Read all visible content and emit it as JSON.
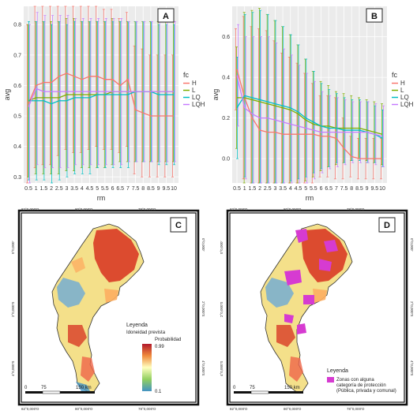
{
  "colors": {
    "H": "#f8766d",
    "L": "#7cae00",
    "LQ": "#00bfc4",
    "LQH": "#c77cff",
    "protected": "#d63bd1"
  },
  "chart_data": [
    {
      "type": "line",
      "panel": "A",
      "xlabel": "rm",
      "ylabel": "avg",
      "ylim": [
        0.28,
        0.86
      ],
      "yticks": [
        "0.3",
        "0.4",
        "0.5",
        "0.6",
        "0.7",
        "0.8"
      ],
      "categories": [
        "0.5",
        "1",
        "1.5",
        "2",
        "2.5",
        "3",
        "3.5",
        "4",
        "4.5",
        "5",
        "5.5",
        "6",
        "6.5",
        "7",
        "7.5",
        "8",
        "8.5",
        "9",
        "9.5",
        "10"
      ],
      "legend_title": "fc",
      "legend": [
        "H",
        "L",
        "LQ",
        "LQH"
      ],
      "legend_position": "right",
      "grid": true,
      "series": [
        {
          "name": "H",
          "values": [
            0.54,
            0.6,
            0.61,
            0.61,
            0.63,
            0.64,
            0.63,
            0.62,
            0.63,
            0.63,
            0.62,
            0.62,
            0.6,
            0.62,
            0.52,
            0.51,
            0.5,
            0.5,
            0.5,
            0.5
          ],
          "errors": [
            0.26,
            0.27,
            0.27,
            0.27,
            0.26,
            0.25,
            0.25,
            0.24,
            0.24,
            0.23,
            0.23,
            0.23,
            0.22,
            0.22,
            0.21,
            0.21,
            0.2,
            0.2,
            0.2,
            0.2
          ]
        },
        {
          "name": "L",
          "values": [
            0.55,
            0.56,
            0.56,
            0.56,
            0.56,
            0.57,
            0.57,
            0.57,
            0.57,
            0.57,
            0.57,
            0.58,
            0.58,
            0.58,
            0.58,
            0.58,
            0.58,
            0.58,
            0.58,
            0.58
          ],
          "errors": [
            0.25,
            0.25,
            0.25,
            0.25,
            0.25,
            0.25,
            0.25,
            0.24,
            0.24,
            0.24,
            0.24,
            0.24,
            0.23,
            0.23,
            0.23,
            0.23,
            0.23,
            0.23,
            0.23,
            0.23
          ]
        },
        {
          "name": "LQ",
          "values": [
            0.55,
            0.55,
            0.55,
            0.54,
            0.55,
            0.55,
            0.56,
            0.56,
            0.56,
            0.57,
            0.57,
            0.57,
            0.57,
            0.57,
            0.58,
            0.58,
            0.58,
            0.57,
            0.57,
            0.57
          ],
          "errors": [
            0.26,
            0.26,
            0.26,
            0.26,
            0.26,
            0.25,
            0.25,
            0.25,
            0.25,
            0.24,
            0.24,
            0.24,
            0.24,
            0.24,
            0.23,
            0.23,
            0.23,
            0.23,
            0.23,
            0.23
          ]
        },
        {
          "name": "LQH",
          "values": [
            0.53,
            0.59,
            0.58,
            0.58,
            0.58,
            0.58,
            0.58,
            0.58,
            0.58,
            0.58,
            0.58,
            0.58,
            0.58,
            0.58,
            0.58,
            0.58,
            0.58,
            0.58,
            0.58,
            0.58
          ],
          "errors": [
            0.27,
            0.25,
            0.25,
            0.25,
            0.25,
            0.25,
            0.24,
            0.24,
            0.24,
            0.24,
            0.24,
            0.24,
            0.24,
            0.23,
            0.23,
            0.23,
            0.23,
            0.23,
            0.23,
            0.23
          ]
        }
      ]
    },
    {
      "type": "line",
      "panel": "B",
      "xlabel": "rm",
      "ylabel": "avg",
      "ylim": [
        -0.12,
        0.75
      ],
      "yticks": [
        "0.0",
        "0.2",
        "0.4",
        "0.6"
      ],
      "categories": [
        "0.5",
        "1",
        "1.5",
        "2",
        "2.5",
        "3",
        "3.5",
        "4",
        "4.5",
        "5",
        "5.5",
        "6",
        "6.5",
        "7",
        "7.5",
        "8",
        "8.5",
        "9",
        "9.5",
        "10"
      ],
      "legend_title": "fc",
      "legend": [
        "H",
        "L",
        "LQ",
        "LQH"
      ],
      "legend_position": "right",
      "grid": true,
      "series": [
        {
          "name": "H",
          "values": [
            0.44,
            0.3,
            0.2,
            0.14,
            0.13,
            0.13,
            0.12,
            0.12,
            0.12,
            0.12,
            0.12,
            0.11,
            0.11,
            0.1,
            0.05,
            0.01,
            0.0,
            0.0,
            0.0,
            0.0
          ],
          "errors": [
            0.2,
            0.4,
            0.45,
            0.5,
            0.5,
            0.45,
            0.4,
            0.38,
            0.35,
            0.3,
            0.25,
            0.2,
            0.2,
            0.2,
            0.15,
            0.1,
            0.1,
            0.1,
            0.1,
            0.1
          ]
        },
        {
          "name": "L",
          "values": [
            0.3,
            0.3,
            0.29,
            0.28,
            0.27,
            0.26,
            0.25,
            0.24,
            0.22,
            0.19,
            0.17,
            0.16,
            0.16,
            0.15,
            0.15,
            0.15,
            0.15,
            0.14,
            0.13,
            0.12
          ],
          "errors": [
            0.25,
            0.42,
            0.44,
            0.46,
            0.44,
            0.42,
            0.4,
            0.37,
            0.34,
            0.3,
            0.26,
            0.22,
            0.2,
            0.18,
            0.17,
            0.16,
            0.15,
            0.15,
            0.15,
            0.15
          ]
        },
        {
          "name": "LQ",
          "values": [
            0.25,
            0.31,
            0.3,
            0.29,
            0.28,
            0.27,
            0.26,
            0.25,
            0.23,
            0.2,
            0.18,
            0.16,
            0.15,
            0.15,
            0.14,
            0.14,
            0.14,
            0.13,
            0.12,
            0.1
          ],
          "errors": [
            0.25,
            0.4,
            0.42,
            0.44,
            0.43,
            0.41,
            0.39,
            0.36,
            0.33,
            0.29,
            0.25,
            0.21,
            0.19,
            0.17,
            0.16,
            0.15,
            0.15,
            0.15,
            0.14,
            0.14
          ]
        },
        {
          "name": "LQH",
          "values": [
            0.41,
            0.25,
            0.22,
            0.2,
            0.2,
            0.19,
            0.18,
            0.17,
            0.16,
            0.15,
            0.14,
            0.13,
            0.13,
            0.13,
            0.13,
            0.13,
            0.13,
            0.13,
            0.12,
            0.11
          ],
          "errors": [
            0.25,
            0.35,
            0.38,
            0.4,
            0.4,
            0.38,
            0.36,
            0.34,
            0.3,
            0.27,
            0.24,
            0.2,
            0.18,
            0.17,
            0.16,
            0.15,
            0.15,
            0.15,
            0.15,
            0.15
          ]
        }
      ]
    }
  ],
  "maps": {
    "C": {
      "label": "C",
      "top_coords": [
        "82°0,000'O",
        "80°0,000'O",
        "78°0,000'O"
      ],
      "bottom_coords": [
        "82°0,000'O",
        "80°0,000'O",
        "78°0,000'O"
      ],
      "left_coords": [
        "0°0,000'",
        "2°0,000'S",
        "4°0,000'S"
      ],
      "right_coords": [
        "0°0,000'",
        "2°0,000'S",
        "4°0,000'S"
      ],
      "legend_title": "Leyenda",
      "legend_subtitle": "Idoneidad prevista",
      "legend_prob": "Probabilidad",
      "legend_max": "0.99",
      "legend_min": "0.1",
      "scale": [
        "0",
        "75",
        "150 km"
      ]
    },
    "D": {
      "label": "D",
      "top_coords": [
        "82°0,000'O",
        "80°0,000'O",
        "78°0,000'O"
      ],
      "bottom_coords": [
        "82°0,000'O",
        "80°0,000'O",
        "78°0,000'O"
      ],
      "left_coords": [
        "0°0,000'",
        "2°0,000'S",
        "4°0,000'S"
      ],
      "right_coords": [
        "0°0,000'",
        "2°0,000'S",
        "4°0,000'S"
      ],
      "legend_title": "Leyenda",
      "legend_item": "Zonas con alguna categoría de protección (Pública, privada y comunal)",
      "legend_item_lines": [
        "Zonas con alguna",
        "categoría de protección",
        "(Pública, privada y comunal)"
      ],
      "scale": [
        "0",
        "75",
        "150 km"
      ]
    }
  }
}
